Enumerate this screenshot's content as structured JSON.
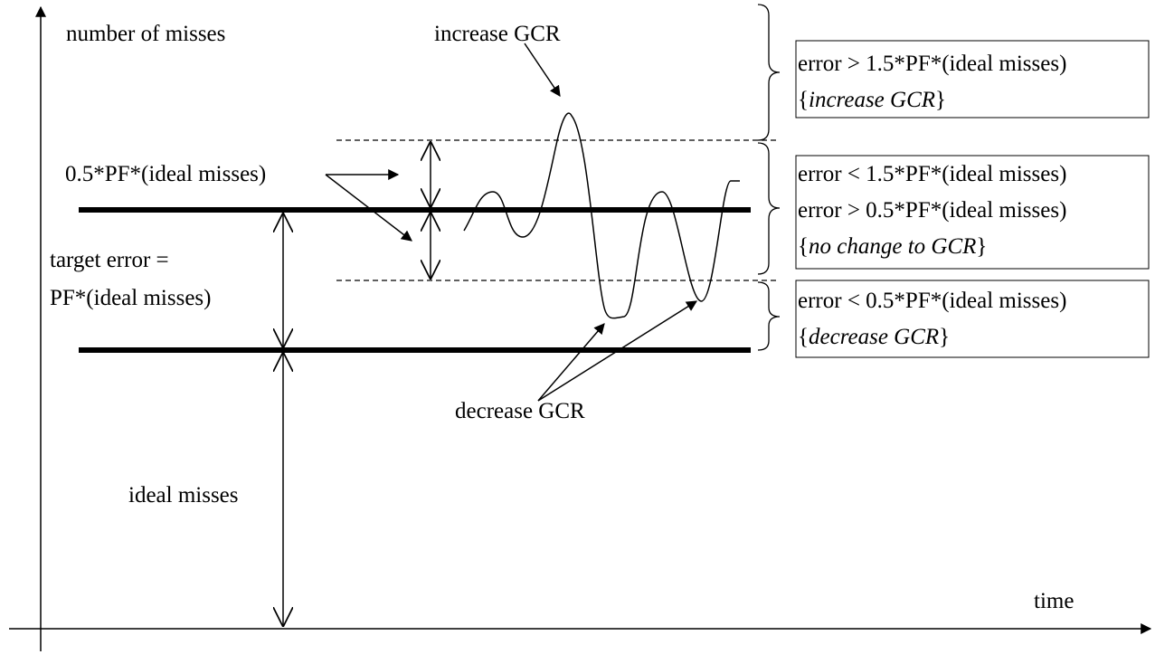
{
  "axes": {
    "y_label": "number of misses",
    "x_label": "time"
  },
  "labels": {
    "increase": "increase GCR",
    "half_pf": "0.5*PF*(ideal misses)",
    "target": [
      "target error =",
      "PF*(ideal misses)"
    ],
    "ideal": "ideal misses",
    "decrease": "decrease GCR"
  },
  "boxes": [
    {
      "lines": [
        "error > 1.5*PF*(ideal misses)"
      ],
      "action": [
        "{",
        "increase GCR",
        "}"
      ]
    },
    {
      "lines": [
        "error < 1.5*PF*(ideal misses)",
        "error > 0.5*PF*(ideal misses)"
      ],
      "action": [
        "{",
        "no change to GCR",
        "}"
      ]
    },
    {
      "lines": [
        "error < 0.5*PF*(ideal misses)"
      ],
      "action": [
        "{",
        "decrease GCR",
        "}"
      ]
    }
  ]
}
